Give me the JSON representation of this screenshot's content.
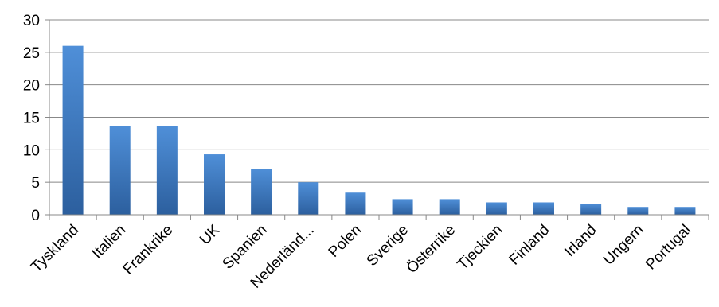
{
  "chart_data": {
    "type": "bar",
    "categories": [
      "Tyskland",
      "Italien",
      "Frankrike",
      "UK",
      "Spanien",
      "Nederländ...",
      "Polen",
      "Sverige",
      "Österrike",
      "Tjeckien",
      "Finland",
      "Irland",
      "Ungern",
      "Portugal"
    ],
    "values": [
      26,
      13.7,
      13.6,
      9.3,
      7.1,
      5.0,
      3.4,
      2.4,
      2.4,
      1.9,
      1.9,
      1.7,
      1.2,
      1.2
    ],
    "ylim": [
      0,
      30
    ],
    "yticks": [
      0,
      5,
      10,
      15,
      20,
      25,
      30
    ],
    "ytick_labels": [
      "0",
      "5",
      "10",
      "15",
      "20",
      "25",
      "30"
    ],
    "grid": true,
    "bar_color_top": "#4f8fd8",
    "bar_color_bottom": "#2c5f9e",
    "grid_color": "#888888",
    "title": "",
    "xlabel": "",
    "ylabel": ""
  }
}
